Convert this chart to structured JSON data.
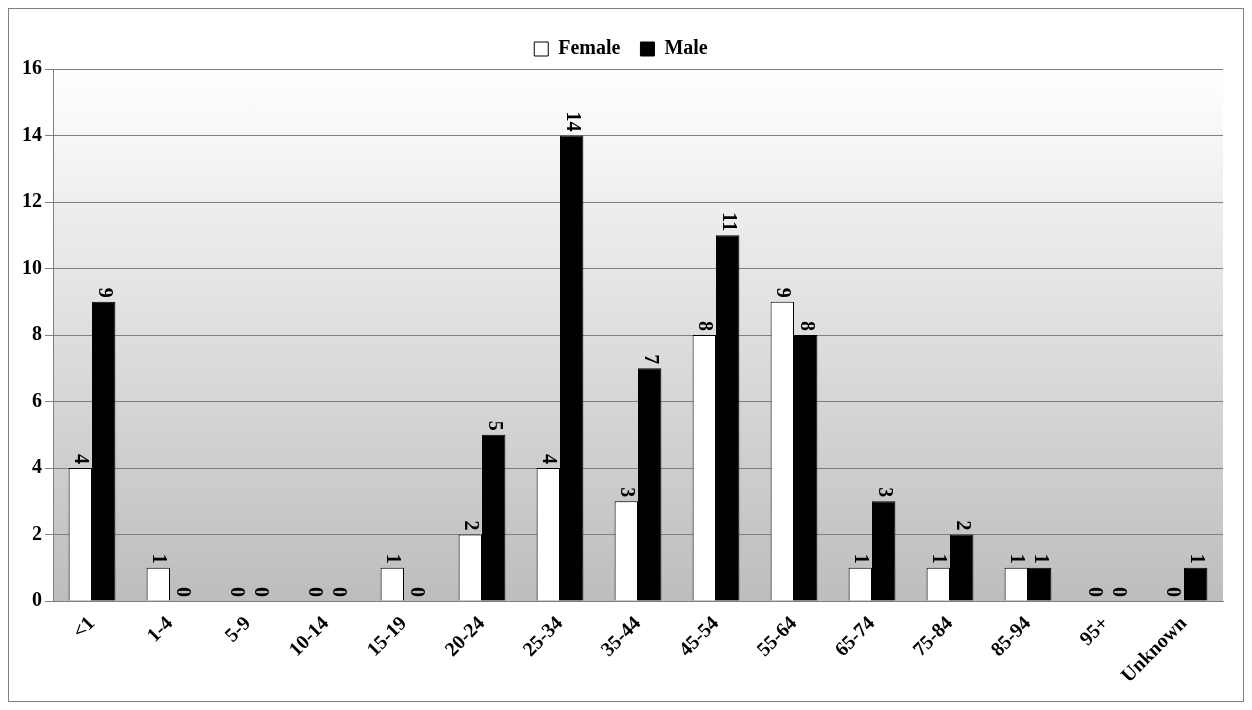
{
  "chart_data": {
    "type": "bar",
    "categories": [
      "<1",
      "1-4",
      "5-9",
      "10-14",
      "15-19",
      "20-24",
      "25-34",
      "35-44",
      "45-54",
      "55-64",
      "65-74",
      "75-84",
      "85-94",
      "95+",
      "Unknown"
    ],
    "series": [
      {
        "name": "Female",
        "color": "#ffffff",
        "values": [
          4,
          1,
          0,
          0,
          1,
          2,
          4,
          3,
          8,
          9,
          1,
          1,
          1,
          0,
          0
        ]
      },
      {
        "name": "Male",
        "color": "#000000",
        "values": [
          9,
          0,
          0,
          0,
          0,
          5,
          14,
          7,
          11,
          8,
          3,
          2,
          1,
          0,
          1
        ]
      }
    ],
    "ylim": [
      0,
      16
    ],
    "yticks": [
      0,
      2,
      4,
      6,
      8,
      10,
      12,
      14,
      16
    ],
    "grid": "y",
    "legend": "top",
    "data_labels": true
  }
}
